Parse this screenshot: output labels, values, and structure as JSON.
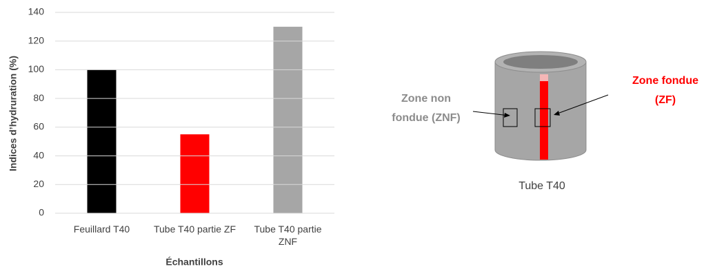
{
  "chart_data": {
    "type": "bar",
    "categories": [
      "Feuillard T40",
      "Tube T40 partie ZF",
      "Tube T40 partie ZNF"
    ],
    "values": [
      100,
      55,
      130
    ],
    "colors": [
      "#000000",
      "#ff0000",
      "#a6a6a6"
    ],
    "ylim": [
      0,
      140
    ],
    "yticks": [
      0,
      20,
      40,
      60,
      80,
      100,
      120,
      140
    ],
    "grid": true,
    "y_label": "Indices d’hydruration (%)",
    "x_label": "Échantillons"
  },
  "diagram": {
    "left_label": "Zone non fondue (ZNF)",
    "right_label": "Zone fondue (ZF)",
    "caption": "Tube T40"
  }
}
